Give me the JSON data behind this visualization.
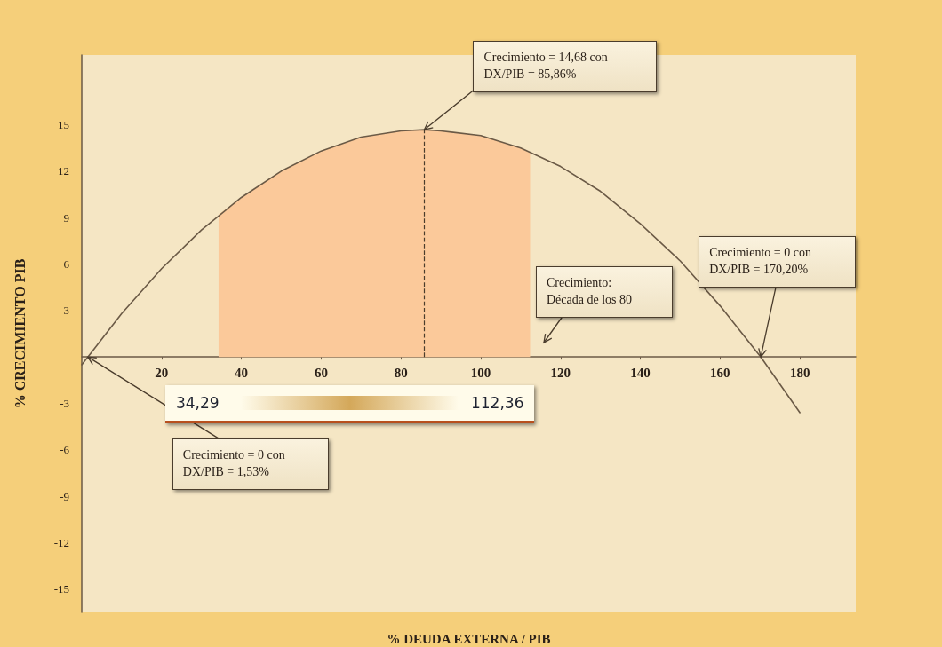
{
  "chart_data": {
    "type": "line",
    "xlabel": "% DEUDA EXTERNA / PIB",
    "ylabel": "% CRECIMIENTO PIB",
    "xlim": [
      0,
      194
    ],
    "xticks": [
      20,
      40,
      60,
      80,
      100,
      120,
      140,
      160,
      180
    ],
    "ylim": [
      -16.5,
      19.5
    ],
    "yticks": [
      -15,
      -12,
      -9,
      -6,
      -3,
      {
        "value": 0,
        "label": null
      },
      3,
      6,
      9,
      12,
      15
    ],
    "grid": false,
    "marker": "none",
    "line_style": "solid",
    "series": [
      {
        "type": "area",
        "color": "#fbc99a",
        "x": [
          34.29,
          40,
          50,
          60,
          70,
          80,
          85.86,
          90,
          100,
          110,
          112.36
        ],
        "values": [
          9.2,
          10.3,
          12,
          13.3,
          14.2,
          14.6,
          14.68,
          14.6,
          14.3,
          13.5,
          13.2
        ]
      },
      {
        "type": "line",
        "color": "#6b5a46",
        "x": [
          0,
          1.53,
          10,
          20,
          30,
          40,
          50,
          60,
          70,
          80,
          85.86,
          90,
          100,
          110,
          120,
          130,
          140,
          150,
          160,
          170.2,
          180
        ],
        "values": [
          -0.5,
          0,
          2.8,
          5.7,
          8.2,
          10.3,
          12,
          13.3,
          14.2,
          14.6,
          14.68,
          14.6,
          14.3,
          13.5,
          12.3,
          10.7,
          8.6,
          6.2,
          3.3,
          0,
          -3.6
        ]
      }
    ],
    "ref_lines": [
      {
        "axis": "y",
        "value": 14.68,
        "color": "#4a3c2c",
        "line_style": "dashed"
      },
      {
        "axis": "x",
        "value": 85.86,
        "color": "#4a3c2c",
        "line_style": "dashed"
      }
    ],
    "annotations": [
      {
        "text": "Crecimiento = 14,68 con\nDX/PIB = 85,86%",
        "x": 85.86,
        "y": 14.68
      },
      "Crecimiento:\nDécada de los 80",
      {
        "text": "Crecimiento = 0 con\nDX/PIB = 170,20%",
        "x": 170.2,
        "y": 0
      },
      {
        "text": "Crecimiento = 0 con\nDX/PIB = 1,53%",
        "x": 1.53,
        "y": 0
      },
      {
        "text": "34,29",
        "x": 34.29,
        "y": 0
      },
      {
        "text": "112,36",
        "x": 112.36,
        "y": 0
      }
    ]
  }
}
